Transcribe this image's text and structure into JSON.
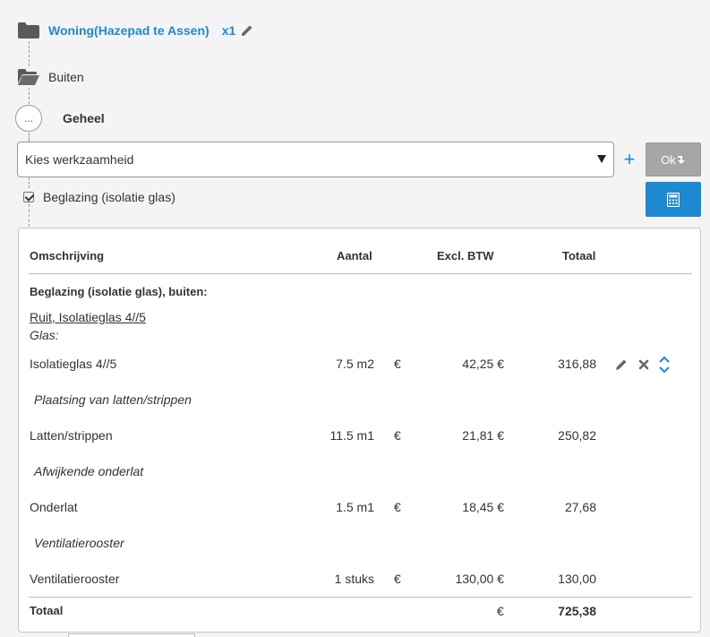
{
  "tree": {
    "project_name": "Woning(Hazepad te Assen)",
    "project_qty": "x1",
    "location": "Buiten",
    "dots": "...",
    "section": "Geheel"
  },
  "form": {
    "select_value": "Kies werkzaamheid",
    "plus": "+",
    "ok_label": "Ok"
  },
  "item": {
    "checked": true,
    "label": "Beglazing (isolatie glas)"
  },
  "table": {
    "headers": {
      "omschrijving": "Omschrijving",
      "aantal": "Aantal",
      "excl": "Excl. BTW",
      "totaal": "Totaal"
    },
    "group_title": "Beglazing (isolatie glas), buiten:",
    "sub_link": "Ruit, Isolatieglas 4//5",
    "sub_category": "Glas:",
    "rows": [
      {
        "desc": "Isolatieglas 4//5",
        "qty": "7.5 m2",
        "cur": "€",
        "price": "42,25 €",
        "total": "316,88"
      },
      {
        "note": "Plaatsing van latten/strippen"
      },
      {
        "desc": "Latten/strippen",
        "qty": "11.5 m1",
        "cur": "€",
        "price": "21,81 €",
        "total": "250,82"
      },
      {
        "note": "Afwijkende onderlat"
      },
      {
        "desc": "Onderlat",
        "qty": "1.5 m1",
        "cur": "€",
        "price": "18,45 €",
        "total": "27,68"
      },
      {
        "note": "Ventilatierooster"
      },
      {
        "desc": "Ventilatierooster",
        "qty": "1 stuks",
        "cur": "€",
        "price": "130,00 €",
        "total": "130,00"
      }
    ],
    "footer": {
      "label": "Totaal",
      "cur": "€",
      "total": "725,38"
    }
  },
  "icons": {
    "folder": "folder-icon",
    "folder_open": "folder-open-icon",
    "pencil": "pencil-icon",
    "download_arrow": "download-arrow-icon",
    "calculator": "calculator-icon",
    "edit": "pencil-icon",
    "delete": "close-icon",
    "reorder": "chevron-up-down-icon"
  },
  "colors": {
    "accent": "#1e88d0",
    "disabled": "#a6a6a6"
  }
}
